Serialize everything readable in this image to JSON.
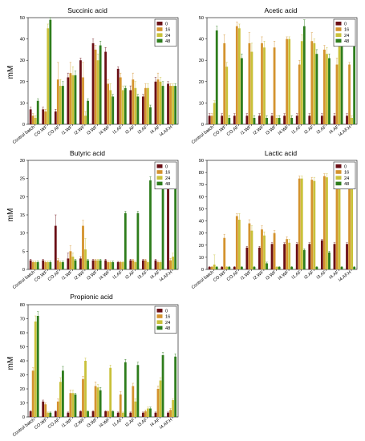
{
  "chart_data": [
    {
      "type": "bar",
      "title": "Succinic acid",
      "ylabel": "mM",
      "ylim": [
        0,
        50
      ],
      "yticks": [
        0,
        10,
        20,
        30,
        40,
        50
      ],
      "categories": [
        "Control batch",
        "CO.WF",
        "CO.AF",
        "I1.WF",
        "I2.WF",
        "I3.WF",
        "I4.WF",
        "I1.AF",
        "I2.AF",
        "I3.AF",
        "I4.AF",
        "I4.AF.H"
      ],
      "legend": {
        "placement": "top-right"
      },
      "series": [
        {
          "name": "0",
          "color": "#6b0f16",
          "values": [
            7,
            7,
            6,
            22,
            30,
            38,
            34,
            26,
            16,
            13,
            20,
            19
          ],
          "errors": [
            1,
            1,
            1,
            2,
            1,
            2,
            2,
            1,
            2,
            1,
            2,
            1
          ]
        },
        {
          "name": "16",
          "color": "#d4932e",
          "values": [
            4,
            6,
            21,
            24,
            22,
            35,
            19,
            22,
            21,
            17,
            21,
            18
          ],
          "errors": [
            1,
            1,
            8,
            5,
            7,
            2,
            2,
            2,
            3,
            2,
            3,
            1
          ]
        },
        {
          "name": "24",
          "color": "#c9c13a",
          "values": [
            3,
            45,
            18,
            23,
            4,
            30,
            16,
            16,
            17,
            17,
            20,
            18
          ],
          "errors": [
            1,
            2,
            3,
            4,
            2,
            3,
            3,
            2,
            3,
            2,
            2,
            1
          ]
        },
        {
          "name": "48",
          "color": "#2e7d1c",
          "values": [
            11,
            49,
            18,
            23,
            11,
            37,
            13,
            17,
            13,
            8,
            18,
            18
          ],
          "errors": [
            1,
            1,
            2,
            2,
            1,
            2,
            1,
            1,
            1,
            1,
            2,
            1
          ]
        }
      ]
    },
    {
      "type": "bar",
      "title": "Acetic acid",
      "ylabel": "",
      "ylim": [
        0,
        50
      ],
      "yticks": [
        0,
        10,
        20,
        30,
        40,
        50
      ],
      "categories": [
        "Control batch",
        "CO.WF",
        "CO.AF",
        "I1.WF",
        "I2.WF",
        "I3.WF",
        "I4.WF",
        "I1.AF",
        "I2.AF",
        "I3.AF",
        "I4.AF",
        "I4.AF.H"
      ],
      "legend": {
        "placement": "top-right"
      },
      "series": [
        {
          "name": "0",
          "color": "#6b0f16",
          "values": [
            4,
            4,
            4,
            4,
            4,
            4,
            4,
            4,
            4,
            4,
            4,
            4
          ],
          "errors": [
            1,
            1,
            1,
            1,
            1,
            1,
            1,
            1,
            1,
            1,
            1,
            1
          ]
        },
        {
          "name": "16",
          "color": "#d4932e",
          "values": [
            4,
            38,
            46,
            38,
            38,
            36,
            40,
            28,
            39,
            35,
            28,
            28
          ],
          "errors": [
            1,
            4,
            2,
            5,
            3,
            3,
            1,
            2,
            4,
            2,
            3,
            1
          ]
        },
        {
          "name": "24",
          "color": "#c9c13a",
          "values": [
            10,
            27,
            45,
            34,
            36,
            3,
            40,
            39,
            38,
            33,
            41,
            3
          ],
          "errors": [
            1,
            2,
            2,
            4,
            3,
            1,
            1,
            3,
            2,
            3,
            4,
            1
          ]
        },
        {
          "name": "48",
          "color": "#2e7d1c",
          "values": [
            44,
            3,
            31,
            3,
            3,
            3,
            3,
            46,
            33,
            31,
            40,
            39
          ],
          "errors": [
            2,
            1,
            2,
            1,
            1,
            1,
            1,
            3,
            2,
            2,
            2,
            1
          ]
        }
      ]
    },
    {
      "type": "bar",
      "title": "Butyric acid",
      "ylabel": "mM",
      "ylim": [
        0,
        30
      ],
      "yticks": [
        0,
        5,
        10,
        15,
        20,
        25,
        30
      ],
      "categories": [
        "Control batch",
        "CO.WF",
        "CO.AF",
        "I1.WF",
        "I2.WF",
        "I3.WF",
        "I4.WF",
        "I1.AF",
        "I2.AF",
        "I3.AF",
        "I4.AF",
        "I4.AF.H"
      ],
      "legend": {
        "placement": "top-right"
      },
      "series": [
        {
          "name": "0",
          "color": "#6b0f16",
          "values": [
            2.5,
            2.5,
            12,
            3,
            3,
            2.5,
            2.5,
            2,
            2.5,
            2.5,
            2.5,
            24
          ],
          "errors": [
            0.3,
            0.3,
            3,
            1.5,
            0.5,
            0.3,
            0.3,
            0.2,
            0.3,
            0.3,
            0.3,
            1.5
          ]
        },
        {
          "name": "16",
          "color": "#d4932e",
          "values": [
            2,
            2,
            2.5,
            5,
            12,
            2.5,
            2,
            2,
            2.5,
            2.5,
            2,
            2.5
          ],
          "errors": [
            0.3,
            0.3,
            0.5,
            1.5,
            1.5,
            0.3,
            0.3,
            0.2,
            0.3,
            0.3,
            0.3,
            0.5
          ]
        },
        {
          "name": "24",
          "color": "#c9c13a",
          "values": [
            2,
            2,
            2,
            3.5,
            5.5,
            2.5,
            2,
            2,
            2,
            2,
            2,
            3.5
          ],
          "errors": [
            0.3,
            0.3,
            0.3,
            1,
            3,
            0.3,
            0.3,
            0.2,
            0.3,
            0.3,
            0.3,
            1
          ]
        },
        {
          "name": "48",
          "color": "#2e7d1c",
          "values": [
            2,
            2,
            2,
            2.5,
            2.5,
            2.5,
            2,
            15.5,
            15.5,
            24.5,
            24.5,
            24.5
          ],
          "errors": [
            0.3,
            0.3,
            0.3,
            0.3,
            0.3,
            0.3,
            0.3,
            0.5,
            0.5,
            1,
            1.5,
            1
          ]
        }
      ]
    },
    {
      "type": "bar",
      "title": "Lactic acid",
      "ylabel": "",
      "ylim": [
        0,
        90
      ],
      "yticks": [
        0,
        10,
        20,
        30,
        40,
        50,
        60,
        70,
        80,
        90
      ],
      "categories": [
        "Control batch",
        "CO.WF",
        "CO.AF",
        "I1.WF",
        "I2.WF",
        "I3.WF",
        "I4.WF",
        "I1.AF",
        "I2.AF",
        "I3.AF",
        "I4.AF",
        "I4.AF.H"
      ],
      "legend": {
        "placement": "top-right"
      },
      "series": [
        {
          "name": "0",
          "color": "#6b0f16",
          "values": [
            2,
            2,
            2,
            18,
            18,
            21,
            21,
            21,
            21,
            24,
            21,
            21
          ],
          "errors": [
            0.5,
            0.5,
            0.5,
            1,
            1,
            1,
            1,
            1,
            1,
            1,
            1,
            1
          ]
        },
        {
          "name": "16",
          "color": "#d4932e",
          "values": [
            2,
            26,
            44,
            38,
            33,
            30,
            25,
            75,
            74,
            77,
            71,
            68
          ],
          "errors": [
            0.5,
            3,
            2,
            3,
            3,
            2,
            2,
            2,
            2,
            2,
            2,
            2
          ]
        },
        {
          "name": "24",
          "color": "#c9c13a",
          "values": [
            4,
            2,
            41,
            32,
            28,
            2,
            22,
            75,
            73,
            76,
            70,
            67
          ],
          "errors": [
            8,
            0.5,
            5,
            4,
            3,
            0.5,
            3,
            2,
            3,
            3,
            2,
            2
          ]
        },
        {
          "name": "48",
          "color": "#2e7d1c",
          "values": [
            2,
            2,
            2,
            2,
            5,
            2,
            2,
            16,
            2,
            14,
            2,
            2
          ],
          "errors": [
            0.5,
            0.5,
            0.5,
            0.5,
            1,
            0.5,
            0.5,
            1,
            0.5,
            1,
            0.5,
            0.5
          ]
        }
      ]
    },
    {
      "type": "bar",
      "title": "Propionic acid",
      "ylabel": "mM",
      "ylim": [
        0,
        80
      ],
      "yticks": [
        0,
        10,
        20,
        30,
        40,
        50,
        60,
        70,
        80
      ],
      "categories": [
        "Control batch",
        "CO.WF",
        "CO.AF",
        "I1.WF",
        "I2.WF",
        "I3.WF",
        "I4.WF",
        "I1.AF",
        "I2.AF",
        "I3.AF",
        "I4.AF",
        "I4.AF.H"
      ],
      "legend": {
        "placement": "top-right"
      },
      "series": [
        {
          "name": "0",
          "color": "#6b0f16",
          "values": [
            4,
            11,
            4,
            3,
            4,
            4,
            4,
            3,
            3,
            3,
            3,
            3
          ],
          "errors": [
            0.5,
            1,
            0.5,
            0.5,
            0.5,
            0.5,
            0.5,
            0.5,
            0.5,
            0.5,
            0.5,
            0.5
          ]
        },
        {
          "name": "16",
          "color": "#d4932e",
          "values": [
            33,
            9,
            11,
            17,
            27,
            22,
            4,
            16,
            22,
            4,
            20,
            5
          ],
          "errors": [
            2,
            1,
            2,
            2,
            2,
            3,
            0.5,
            2,
            2,
            1,
            2,
            1
          ]
        },
        {
          "name": "24",
          "color": "#c9c13a",
          "values": [
            68,
            3,
            25,
            17,
            40,
            21,
            35,
            3,
            11,
            6,
            26,
            12
          ],
          "errors": [
            4,
            0.5,
            3,
            2,
            2,
            2,
            2,
            0.5,
            2,
            1,
            2,
            1
          ]
        },
        {
          "name": "48",
          "color": "#2e7d1c",
          "values": [
            72,
            3,
            33,
            16,
            4,
            19,
            4,
            39,
            37,
            6,
            44,
            43
          ],
          "errors": [
            3,
            0.5,
            3,
            1,
            0.5,
            2,
            0.5,
            2,
            2,
            1,
            2,
            2
          ]
        }
      ]
    }
  ]
}
